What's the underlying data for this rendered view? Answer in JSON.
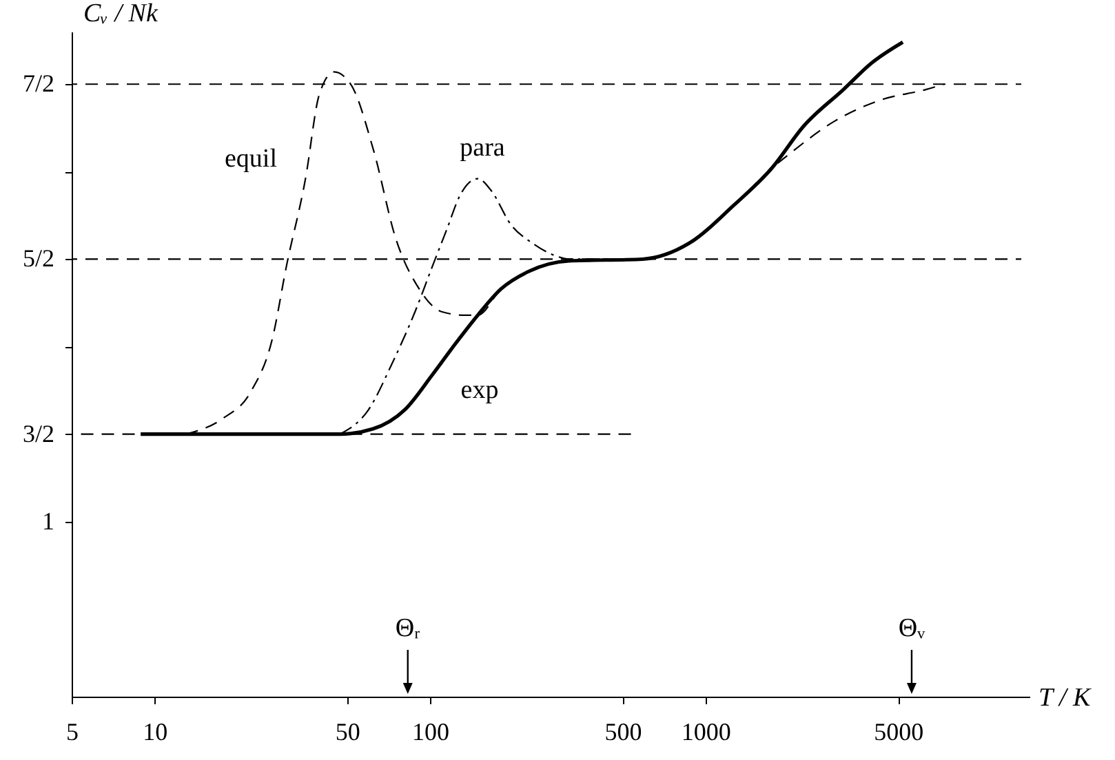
{
  "chart_data": {
    "type": "line",
    "xlabel": "T / K",
    "ylabel": "Cᵥ / Nk",
    "log": "x",
    "xlim": [
      5,
      15000
    ],
    "xticks": [
      5,
      10,
      50,
      100,
      500,
      1000,
      5000
    ],
    "ylim": [
      0,
      3.8
    ],
    "yticks": [
      1,
      {
        "value": 1.5,
        "label": "3/2"
      },
      {
        "value": 2,
        "label": null
      },
      {
        "value": 2.5,
        "label": "5/2"
      },
      {
        "value": 3,
        "label": null
      },
      {
        "value": 3.5,
        "label": "7/2"
      }
    ],
    "series": [
      {
        "color": "#000000",
        "line_style": "dashed",
        "x": [
          5,
          545
        ],
        "values": [
          1.5,
          1.5
        ]
      },
      {
        "color": "#000000",
        "line_style": "dashed",
        "x": [
          5,
          14000
        ],
        "values": [
          2.5,
          2.5
        ]
      },
      {
        "color": "#000000",
        "line_style": "dashed",
        "x": [
          5,
          14000
        ],
        "values": [
          3.5,
          3.5
        ]
      },
      {
        "color": "#000000",
        "line_style": "dashed",
        "x": [
          13,
          17.7,
          22.3,
          26.8,
          30.1,
          35.3,
          39.6,
          44.8,
          51.5,
          62.4,
          75,
          91.3,
          110,
          133,
          149,
          181,
          228,
          320,
          590,
          870,
          1270,
          1740,
          2010,
          2950,
          4330,
          6330,
          7350
        ],
        "values": [
          1.5,
          1.59,
          1.74,
          2.05,
          2.46,
          2.96,
          3.44,
          3.57,
          3.5,
          3.12,
          2.62,
          2.33,
          2.2,
          2.18,
          2.18,
          2.33,
          2.43,
          2.49,
          2.5,
          2.59,
          2.81,
          3.02,
          3.1,
          3.29,
          3.41,
          3.47,
          3.5
        ]
      },
      {
        "color": "#000000",
        "line_style": "dashdot",
        "x": [
          47,
          59.8,
          72.6,
          88.2,
          102,
          115,
          128,
          149,
          167,
          196,
          236,
          297,
          320,
          590
        ],
        "values": [
          1.5,
          1.64,
          1.9,
          2.2,
          2.46,
          2.67,
          2.86,
          2.96,
          2.89,
          2.7,
          2.59,
          2.51,
          2.5,
          2.5
        ]
      },
      {
        "color": "#000000",
        "line_style": "solid",
        "x": [
          8.9,
          47,
          62,
          81,
          102,
          124,
          149,
          181,
          228,
          320,
          590,
          870,
          1270,
          1740,
          2270,
          3170,
          4000,
          5200
        ],
        "values": [
          1.5,
          1.5,
          1.53,
          1.64,
          1.84,
          2.02,
          2.18,
          2.33,
          2.43,
          2.49,
          2.5,
          2.59,
          2.81,
          3.02,
          3.26,
          3.47,
          3.62,
          3.74
        ]
      }
    ],
    "annotations": [
      "equil",
      "para",
      "exp"
    ],
    "ref_lines": [
      {
        "axis": "x",
        "value": 83,
        "label": "Θᵣ"
      },
      {
        "axis": "x",
        "value": 5600,
        "label": "Θᵥ"
      }
    ]
  }
}
